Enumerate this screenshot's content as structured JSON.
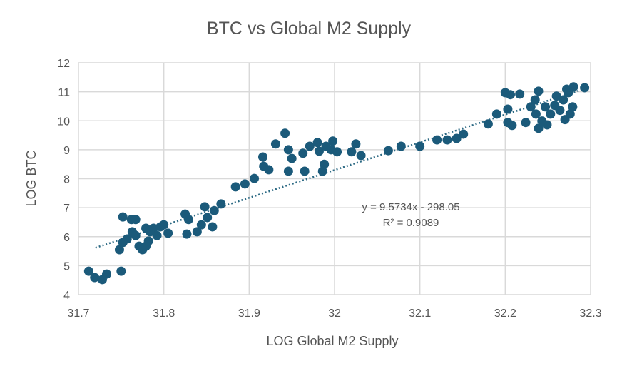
{
  "chart_data": {
    "type": "scatter",
    "title": "BTC vs Global M2 Supply",
    "xlabel": "LOG Global M2 Supply",
    "ylabel": "LOG BTC",
    "xlim": [
      31.7,
      32.3
    ],
    "ylim": [
      4,
      12
    ],
    "xticks": [
      "31.7",
      "31.8",
      "31.9",
      "32",
      "32.1",
      "32.2",
      "32.3"
    ],
    "yticks": [
      "4",
      "5",
      "6",
      "7",
      "8",
      "9",
      "10",
      "11",
      "12"
    ],
    "grid": true,
    "marker_color": "#1b5a7a",
    "trendline": {
      "type": "linear",
      "slope": 9.5734,
      "intercept": -298.05,
      "equation_label": "y = 9.5734x - 298.05",
      "r2_label": "R² = 0.9089",
      "style": "dotted"
    },
    "points": [
      [
        31.712,
        4.81
      ],
      [
        31.719,
        4.59
      ],
      [
        31.728,
        4.52
      ],
      [
        31.733,
        4.71
      ],
      [
        31.75,
        4.81
      ],
      [
        31.752,
        6.68
      ],
      [
        31.762,
        6.59
      ],
      [
        31.767,
        6.59
      ],
      [
        31.748,
        5.55
      ],
      [
        31.752,
        5.8
      ],
      [
        31.757,
        5.92
      ],
      [
        31.763,
        6.17
      ],
      [
        31.767,
        6.04
      ],
      [
        31.771,
        5.67
      ],
      [
        31.775,
        5.55
      ],
      [
        31.779,
        5.67
      ],
      [
        31.782,
        5.85
      ],
      [
        31.779,
        6.29
      ],
      [
        31.784,
        6.17
      ],
      [
        31.788,
        6.29
      ],
      [
        31.792,
        6.04
      ],
      [
        31.796,
        6.34
      ],
      [
        31.8,
        6.41
      ],
      [
        31.805,
        6.12
      ],
      [
        31.827,
        6.09
      ],
      [
        31.825,
        6.78
      ],
      [
        31.829,
        6.59
      ],
      [
        31.839,
        6.17
      ],
      [
        31.844,
        6.41
      ],
      [
        31.848,
        7.03
      ],
      [
        31.851,
        6.66
      ],
      [
        31.857,
        6.34
      ],
      [
        31.859,
        6.9
      ],
      [
        31.867,
        7.13
      ],
      [
        31.884,
        7.72
      ],
      [
        31.895,
        7.82
      ],
      [
        31.906,
        8.01
      ],
      [
        31.917,
        8.43
      ],
      [
        31.923,
        8.31
      ],
      [
        31.916,
        8.75
      ],
      [
        31.931,
        9.2
      ],
      [
        31.942,
        9.57
      ],
      [
        31.946,
        9.0
      ],
      [
        31.946,
        8.26
      ],
      [
        31.95,
        8.7
      ],
      [
        31.963,
        8.88
      ],
      [
        31.965,
        8.26
      ],
      [
        31.971,
        9.12
      ],
      [
        31.98,
        9.25
      ],
      [
        31.982,
        8.95
      ],
      [
        31.986,
        8.26
      ],
      [
        31.988,
        8.5
      ],
      [
        31.99,
        9.12
      ],
      [
        31.996,
        9.0
      ],
      [
        31.998,
        9.3
      ],
      [
        32.003,
        8.93
      ],
      [
        32.02,
        8.93
      ],
      [
        32.025,
        9.2
      ],
      [
        32.031,
        8.8
      ],
      [
        32.063,
        8.97
      ],
      [
        32.078,
        9.12
      ],
      [
        32.1,
        9.12
      ],
      [
        32.12,
        9.34
      ],
      [
        32.132,
        9.34
      ],
      [
        32.143,
        9.39
      ],
      [
        32.151,
        9.54
      ],
      [
        32.18,
        9.89
      ],
      [
        32.19,
        10.23
      ],
      [
        32.2,
        10.97
      ],
      [
        32.206,
        10.9
      ],
      [
        32.217,
        10.92
      ],
      [
        32.203,
        10.4
      ],
      [
        32.203,
        9.94
      ],
      [
        32.208,
        9.84
      ],
      [
        32.224,
        9.94
      ],
      [
        32.23,
        10.48
      ],
      [
        32.235,
        10.72
      ],
      [
        32.239,
        11.02
      ],
      [
        32.236,
        10.23
      ],
      [
        32.239,
        9.74
      ],
      [
        32.243,
        9.99
      ],
      [
        32.247,
        10.48
      ],
      [
        32.249,
        9.86
      ],
      [
        32.253,
        10.23
      ],
      [
        32.258,
        10.53
      ],
      [
        32.26,
        10.85
      ],
      [
        32.264,
        10.36
      ],
      [
        32.268,
        10.72
      ],
      [
        32.272,
        11.09
      ],
      [
        32.274,
        10.97
      ],
      [
        32.276,
        10.23
      ],
      [
        32.279,
        10.48
      ],
      [
        32.28,
        11.17
      ],
      [
        32.293,
        11.14
      ],
      [
        32.27,
        10.04
      ]
    ]
  }
}
